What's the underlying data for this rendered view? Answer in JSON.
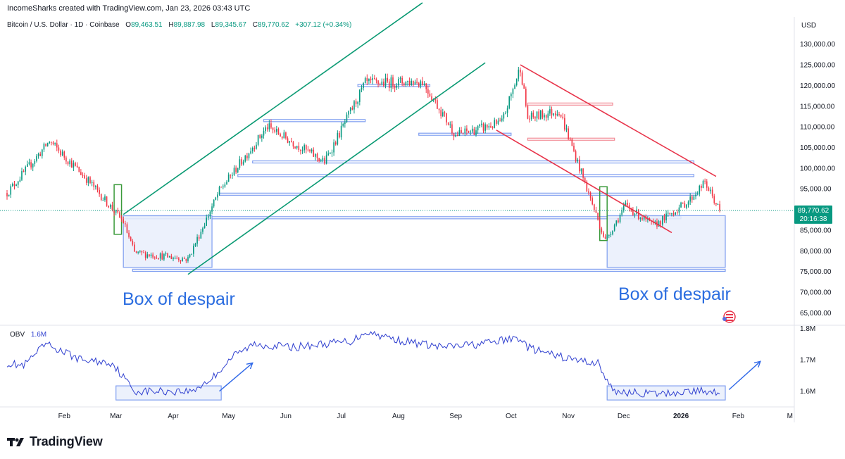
{
  "header": {
    "caption": "IncomeSharks created with TradingView.com, Jan 23, 2026 03:43 UTC"
  },
  "legend": {
    "symbol": "Bitcoin / U.S. Dollar · 1D · Coinbase",
    "open_label": "O",
    "open": "89,463.51",
    "high_label": "H",
    "high": "89,887.98",
    "low_label": "L",
    "low": "89,345.67",
    "close_label": "C",
    "close": "89,770.62",
    "change": "+307.12 (+0.34%)"
  },
  "price_scale": {
    "currency": "USD",
    "last_price": "89,770.62",
    "countdown": "20:16:38"
  },
  "obv_legend": {
    "name": "OBV",
    "value": "1.6M"
  },
  "annotations": {
    "left_box": "Box of despair",
    "right_box": "Box of despair"
  },
  "footer": {
    "brand": "TradingView"
  },
  "colors": {
    "up": "#089981",
    "down": "#f23645",
    "channel_up": "#0a9a73",
    "channel_down": "#e8344a",
    "level": "#7f9ef0",
    "box_fill": "#e9effc",
    "green_box": "#3a9a3a",
    "obv_line": "#3040d0",
    "annotation_text": "#2b6de0",
    "arrow": "#2f68e8"
  },
  "chart_data": [
    {
      "type": "candlestick",
      "title": "Bitcoin / U.S. Dollar · 1D · Coinbase",
      "x_tick_labels": [
        "Feb",
        "Mar",
        "Apr",
        "May",
        "Jun",
        "Jul",
        "Aug",
        "Sep",
        "Oct",
        "Nov",
        "Dec",
        "2026",
        "Feb",
        "M"
      ],
      "y_tick_labels": [
        "130,000.00",
        "125,000.00",
        "120,000.00",
        "115,000.00",
        "110,000.00",
        "105,000.00",
        "100,000.00",
        "95,000.00",
        "90,000.00",
        "85,000.00",
        "80,000.00",
        "75,000.00",
        "70,000.00",
        "65,000.00"
      ],
      "y_ticks": [
        130000,
        125000,
        120000,
        115000,
        110000,
        105000,
        100000,
        95000,
        90000,
        85000,
        80000,
        75000,
        70000,
        65000
      ],
      "ylim": [
        62000,
        132500
      ],
      "last_close": 89770.62,
      "anchor_dates": [
        "2025-01-01",
        "2025-01-24",
        "2025-02-14",
        "2025-03-05",
        "2025-03-11",
        "2025-04-09",
        "2025-04-26",
        "2025-05-22",
        "2025-06-22",
        "2025-07-14",
        "2025-08-14",
        "2025-09-01",
        "2025-09-26",
        "2025-10-06",
        "2025-10-10",
        "2025-10-27",
        "2025-11-21",
        "2025-12-02",
        "2025-12-17",
        "2026-01-05",
        "2026-01-14",
        "2026-01-22"
      ],
      "anchor_prices": [
        94000,
        106500,
        97000,
        87000,
        79500,
        78000,
        94500,
        110000,
        101500,
        120500,
        121000,
        108000,
        111000,
        124500,
        112000,
        114000,
        82500,
        91000,
        86000,
        92000,
        96500,
        89770
      ],
      "price_levels": [
        {
          "price": 120000,
          "from": "2025-07-10",
          "to": "2025-08-18",
          "color": "#7f9ef0"
        },
        {
          "price": 111500,
          "from": "2025-05-20",
          "to": "2025-07-14",
          "color": "#7f9ef0"
        },
        {
          "price": 108200,
          "from": "2025-08-12",
          "to": "2025-10-01",
          "color": "#7f9ef0"
        },
        {
          "price": 115500,
          "from": "2025-10-10",
          "to": "2025-11-25",
          "color": "#f28b96"
        },
        {
          "price": 107000,
          "from": "2025-10-10",
          "to": "2025-11-26",
          "color": "#f28b96"
        },
        {
          "price": 101500,
          "from": "2025-05-14",
          "to": "2026-01-08",
          "color": "#7f9ef0"
        },
        {
          "price": 98200,
          "from": "2025-05-06",
          "to": "2026-01-08",
          "color": "#7f9ef0"
        },
        {
          "price": 93700,
          "from": "2025-04-26",
          "to": "2026-01-10",
          "color": "#7f9ef0"
        },
        {
          "price": 88000,
          "from": "2025-03-05",
          "to": "2026-01-01",
          "color": "#7f9ef0"
        },
        {
          "price": 75300,
          "from": "2025-03-10",
          "to": "2026-01-25",
          "color": "#7f9ef0"
        }
      ],
      "boxes": [
        {
          "from": "2025-03-05",
          "to": "2025-04-22",
          "top": 88500,
          "bottom": 76000,
          "kind": "despair"
        },
        {
          "from": "2025-11-22",
          "to": "2026-01-25",
          "top": 88500,
          "bottom": 76000,
          "kind": "despair"
        },
        {
          "from": "2025-02-28",
          "to": "2025-03-04",
          "top": 96000,
          "bottom": 84000,
          "kind": "green"
        },
        {
          "from": "2025-11-18",
          "to": "2025-11-22",
          "top": 95500,
          "bottom": 82500,
          "kind": "green"
        }
      ],
      "trend_lines": [
        {
          "from": [
            "2025-03-05",
            88800
          ],
          "to": [
            "2025-08-14",
            140000
          ],
          "color": "#0a9a73"
        },
        {
          "from": [
            "2025-04-09",
            74300
          ],
          "to": [
            "2025-09-17",
            125500
          ],
          "color": "#0a9a73"
        },
        {
          "from": [
            "2025-10-06",
            125000
          ],
          "to": [
            "2026-01-20",
            98000
          ],
          "color": "#e8344a"
        },
        {
          "from": [
            "2025-09-23",
            109200
          ],
          "to": [
            "2025-12-27",
            84400
          ],
          "color": "#e8344a"
        }
      ]
    },
    {
      "type": "line",
      "title": "OBV",
      "y_tick_labels": [
        "1.8M",
        "1.7M",
        "1.6M"
      ],
      "y_ticks": [
        1.8,
        1.7,
        1.6
      ],
      "ylim": [
        1.55,
        1.81
      ],
      "anchor_dates": [
        "2025-01-01",
        "2025-01-10",
        "2025-01-22",
        "2025-02-10",
        "2025-02-27",
        "2025-03-11",
        "2025-04-01",
        "2025-04-11",
        "2025-04-22",
        "2025-05-03",
        "2025-05-15",
        "2025-06-05",
        "2025-07-07",
        "2025-07-14",
        "2025-08-03",
        "2025-08-25",
        "2025-09-14",
        "2025-10-06",
        "2025-10-10",
        "2025-10-20",
        "2025-11-04",
        "2025-11-17",
        "2025-11-25",
        "2025-12-20",
        "2026-01-05",
        "2026-01-14",
        "2026-01-21"
      ],
      "anchor_values": [
        1.69,
        1.68,
        1.75,
        1.7,
        1.69,
        1.6,
        1.6,
        1.6,
        1.64,
        1.71,
        1.75,
        1.74,
        1.76,
        1.79,
        1.76,
        1.74,
        1.75,
        1.77,
        1.74,
        1.72,
        1.7,
        1.69,
        1.6,
        1.59,
        1.6,
        1.6,
        1.6
      ],
      "boxes": [
        {
          "from": "2025-03-01",
          "to": "2025-04-27",
          "top": 1.617,
          "bottom": 1.572
        },
        {
          "from": "2025-11-22",
          "to": "2026-01-25",
          "top": 1.617,
          "bottom": 1.572
        }
      ],
      "arrows": [
        {
          "from": [
            "2025-04-26",
            1.6
          ],
          "to": [
            "2025-05-14",
            1.69
          ]
        },
        {
          "from": [
            "2026-01-27",
            1.605
          ],
          "to": [
            "2026-02-13",
            1.695
          ]
        }
      ]
    }
  ]
}
